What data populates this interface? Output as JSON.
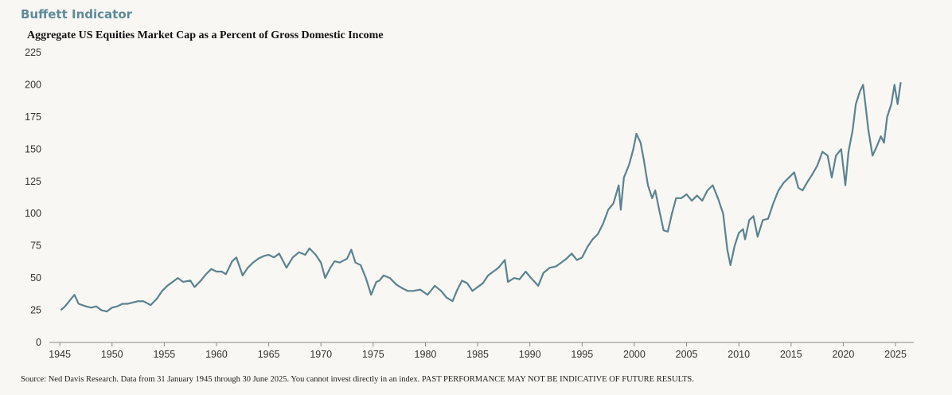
{
  "chart_data": {
    "type": "line",
    "title": "Buffett Indicator",
    "subtitle": "Aggregate US Equities Market Cap as a Percent of Gross Domestic Income",
    "source": "Source: Ned Davis Research. Data from 31 January 1945 through 30 June 2025. You cannot invest directly in an index. PAST PERFORMANCE MAY NOT BE INDICATIVE OF FUTURE RESULTS.",
    "xlim": [
      1944,
      2026.75
    ],
    "xticks": [
      1945,
      1950,
      1955,
      1960,
      1965,
      1970,
      1975,
      1980,
      1985,
      1990,
      1995,
      2000,
      2005,
      2010,
      2015,
      2020,
      2025
    ],
    "ylim": [
      0,
      225
    ],
    "yticks": [
      0,
      25,
      50,
      75,
      100,
      125,
      150,
      175,
      200,
      225
    ],
    "grid": false,
    "color": "#5b8290",
    "x": [
      1945.1,
      1945.5,
      1946.0,
      1946.4,
      1946.8,
      1947.5,
      1948.0,
      1948.5,
      1949.0,
      1949.5,
      1950.0,
      1950.5,
      1951.0,
      1951.5,
      1952.0,
      1952.5,
      1953.0,
      1953.7,
      1954.3,
      1954.8,
      1955.3,
      1955.8,
      1956.3,
      1956.8,
      1957.5,
      1957.9,
      1958.5,
      1959.0,
      1959.5,
      1960.0,
      1960.5,
      1960.9,
      1961.5,
      1961.9,
      1962.5,
      1963.0,
      1963.5,
      1964.0,
      1964.5,
      1965.0,
      1965.5,
      1966.0,
      1966.7,
      1967.3,
      1967.9,
      1968.5,
      1968.9,
      1969.5,
      1970.0,
      1970.4,
      1970.9,
      1971.3,
      1971.8,
      1972.5,
      1972.9,
      1973.3,
      1973.8,
      1974.3,
      1974.8,
      1975.3,
      1975.6,
      1976.0,
      1976.6,
      1977.2,
      1977.8,
      1978.3,
      1978.8,
      1979.5,
      1980.2,
      1980.9,
      1981.5,
      1982.0,
      1982.6,
      1983.0,
      1983.5,
      1984.0,
      1984.5,
      1985.0,
      1985.5,
      1986.0,
      1986.5,
      1987.0,
      1987.6,
      1987.9,
      1988.5,
      1989.0,
      1989.6,
      1990.0,
      1990.8,
      1991.3,
      1991.9,
      1992.5,
      1993.0,
      1993.5,
      1994.0,
      1994.5,
      1995.0,
      1995.5,
      1996.0,
      1996.5,
      1997.0,
      1997.5,
      1998.0,
      1998.5,
      1998.7,
      1999.0,
      1999.5,
      1999.9,
      2000.2,
      2000.6,
      2000.9,
      2001.3,
      2001.7,
      2002.0,
      2002.4,
      2002.8,
      2003.2,
      2003.6,
      2004.0,
      2004.5,
      2005.0,
      2005.5,
      2006.0,
      2006.5,
      2007.0,
      2007.5,
      2008.0,
      2008.5,
      2008.9,
      2009.2,
      2009.6,
      2010.0,
      2010.4,
      2010.6,
      2011.0,
      2011.4,
      2011.8,
      2012.3,
      2012.8,
      2013.3,
      2013.8,
      2014.3,
      2014.8,
      2015.3,
      2015.7,
      2016.1,
      2016.6,
      2017.0,
      2017.5,
      2018.0,
      2018.5,
      2018.9,
      2019.3,
      2019.8,
      2020.2,
      2020.5,
      2020.9,
      2021.2,
      2021.6,
      2021.9,
      2022.4,
      2022.8,
      2023.2,
      2023.6,
      2023.9,
      2024.2,
      2024.6,
      2024.9,
      2025.2,
      2025.5
    ],
    "values": [
      25,
      28,
      33,
      37,
      30,
      28,
      27,
      28,
      25,
      24,
      27,
      28,
      30,
      30,
      31,
      32,
      32,
      29,
      34,
      40,
      44,
      47,
      50,
      47,
      48,
      43,
      48,
      53,
      57,
      55,
      55,
      53,
      63,
      66,
      52,
      58,
      62,
      65,
      67,
      68,
      66,
      69,
      58,
      66,
      70,
      68,
      73,
      68,
      62,
      50,
      58,
      63,
      62,
      65,
      72,
      62,
      60,
      50,
      37,
      47,
      48,
      52,
      50,
      45,
      42,
      40,
      40,
      41,
      37,
      44,
      40,
      35,
      32,
      40,
      48,
      46,
      40,
      43,
      46,
      52,
      55,
      58,
      64,
      47,
      50,
      49,
      55,
      51,
      44,
      54,
      58,
      59,
      62,
      65,
      69,
      64,
      66,
      74,
      80,
      84,
      92,
      103,
      108,
      122,
      103,
      128,
      138,
      150,
      162,
      155,
      142,
      122,
      112,
      118,
      102,
      87,
      86,
      100,
      112,
      112,
      115,
      110,
      114,
      110,
      118,
      122,
      112,
      100,
      72,
      60,
      75,
      85,
      88,
      80,
      95,
      98,
      82,
      95,
      96,
      108,
      118,
      124,
      128,
      132,
      120,
      118,
      125,
      130,
      137,
      148,
      145,
      128,
      145,
      150,
      122,
      148,
      165,
      185,
      195,
      200,
      165,
      145,
      152,
      160,
      155,
      175,
      185,
      200,
      185,
      202
    ]
  }
}
